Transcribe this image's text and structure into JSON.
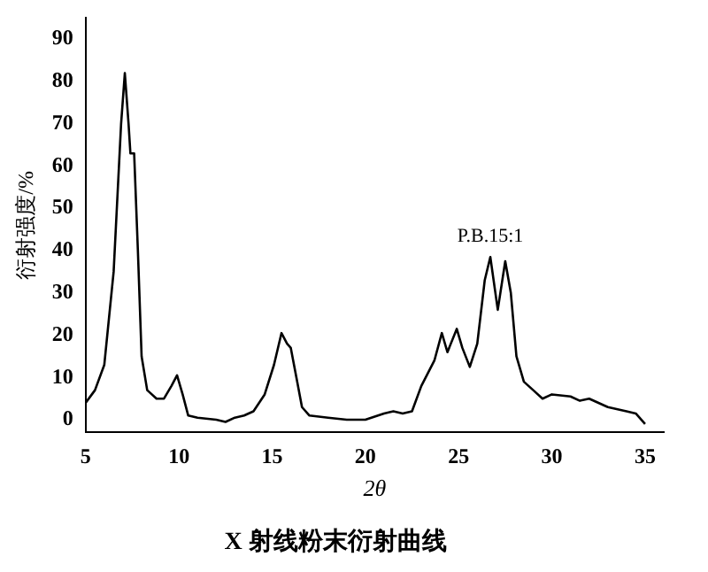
{
  "chart_data": {
    "type": "line",
    "title": "X 射线粉末衍射曲线",
    "xlabel": "2θ",
    "ylabel": "衍射强度/%",
    "annotations": [
      "P.B.15:1"
    ],
    "xlim": [
      5,
      36
    ],
    "xticks": [
      5,
      10,
      15,
      20,
      25,
      30,
      35
    ],
    "ylim": [
      -3,
      95
    ],
    "yticks": [
      0,
      10,
      20,
      30,
      40,
      50,
      60,
      70,
      80,
      90
    ],
    "grid": false,
    "legend": false,
    "marker": "none",
    "line_style": "solid",
    "series": [
      {
        "color": "#000000",
        "x": [
          5,
          5.5,
          6,
          6.5,
          6.9,
          7.1,
          7.3,
          7.4,
          7.6,
          7.8,
          8,
          8.3,
          8.8,
          9.2,
          9.6,
          9.9,
          10.2,
          10.5,
          11,
          12,
          12.5,
          13,
          13.5,
          14,
          14.6,
          15.1,
          15.5,
          15.8,
          16,
          16.3,
          16.6,
          17,
          18,
          19,
          20,
          21,
          21.5,
          22,
          22.5,
          23,
          23.7,
          24.1,
          24.4,
          24.9,
          25.2,
          25.6,
          26,
          26.4,
          26.7,
          27.1,
          27.5,
          27.8,
          28.1,
          28.5,
          29,
          29.5,
          30,
          31,
          31.5,
          32,
          32.5,
          33,
          34,
          34.5,
          35
        ],
        "values": [
          4,
          7,
          13,
          35,
          70,
          82,
          70,
          63,
          63,
          40,
          15,
          7,
          5,
          5,
          8,
          10.5,
          6,
          1,
          0.5,
          0,
          -0.5,
          0.5,
          1,
          2,
          6,
          13,
          20.5,
          18,
          17,
          10,
          3,
          1,
          0.5,
          0,
          0,
          1.5,
          2,
          1.5,
          2,
          8,
          14,
          20.5,
          16,
          21.5,
          17,
          12.5,
          18,
          33,
          38.5,
          26,
          37.5,
          30,
          15,
          9,
          7,
          5,
          6,
          5.5,
          4.5,
          5,
          4,
          3,
          2,
          1.5,
          -1
        ]
      }
    ]
  }
}
